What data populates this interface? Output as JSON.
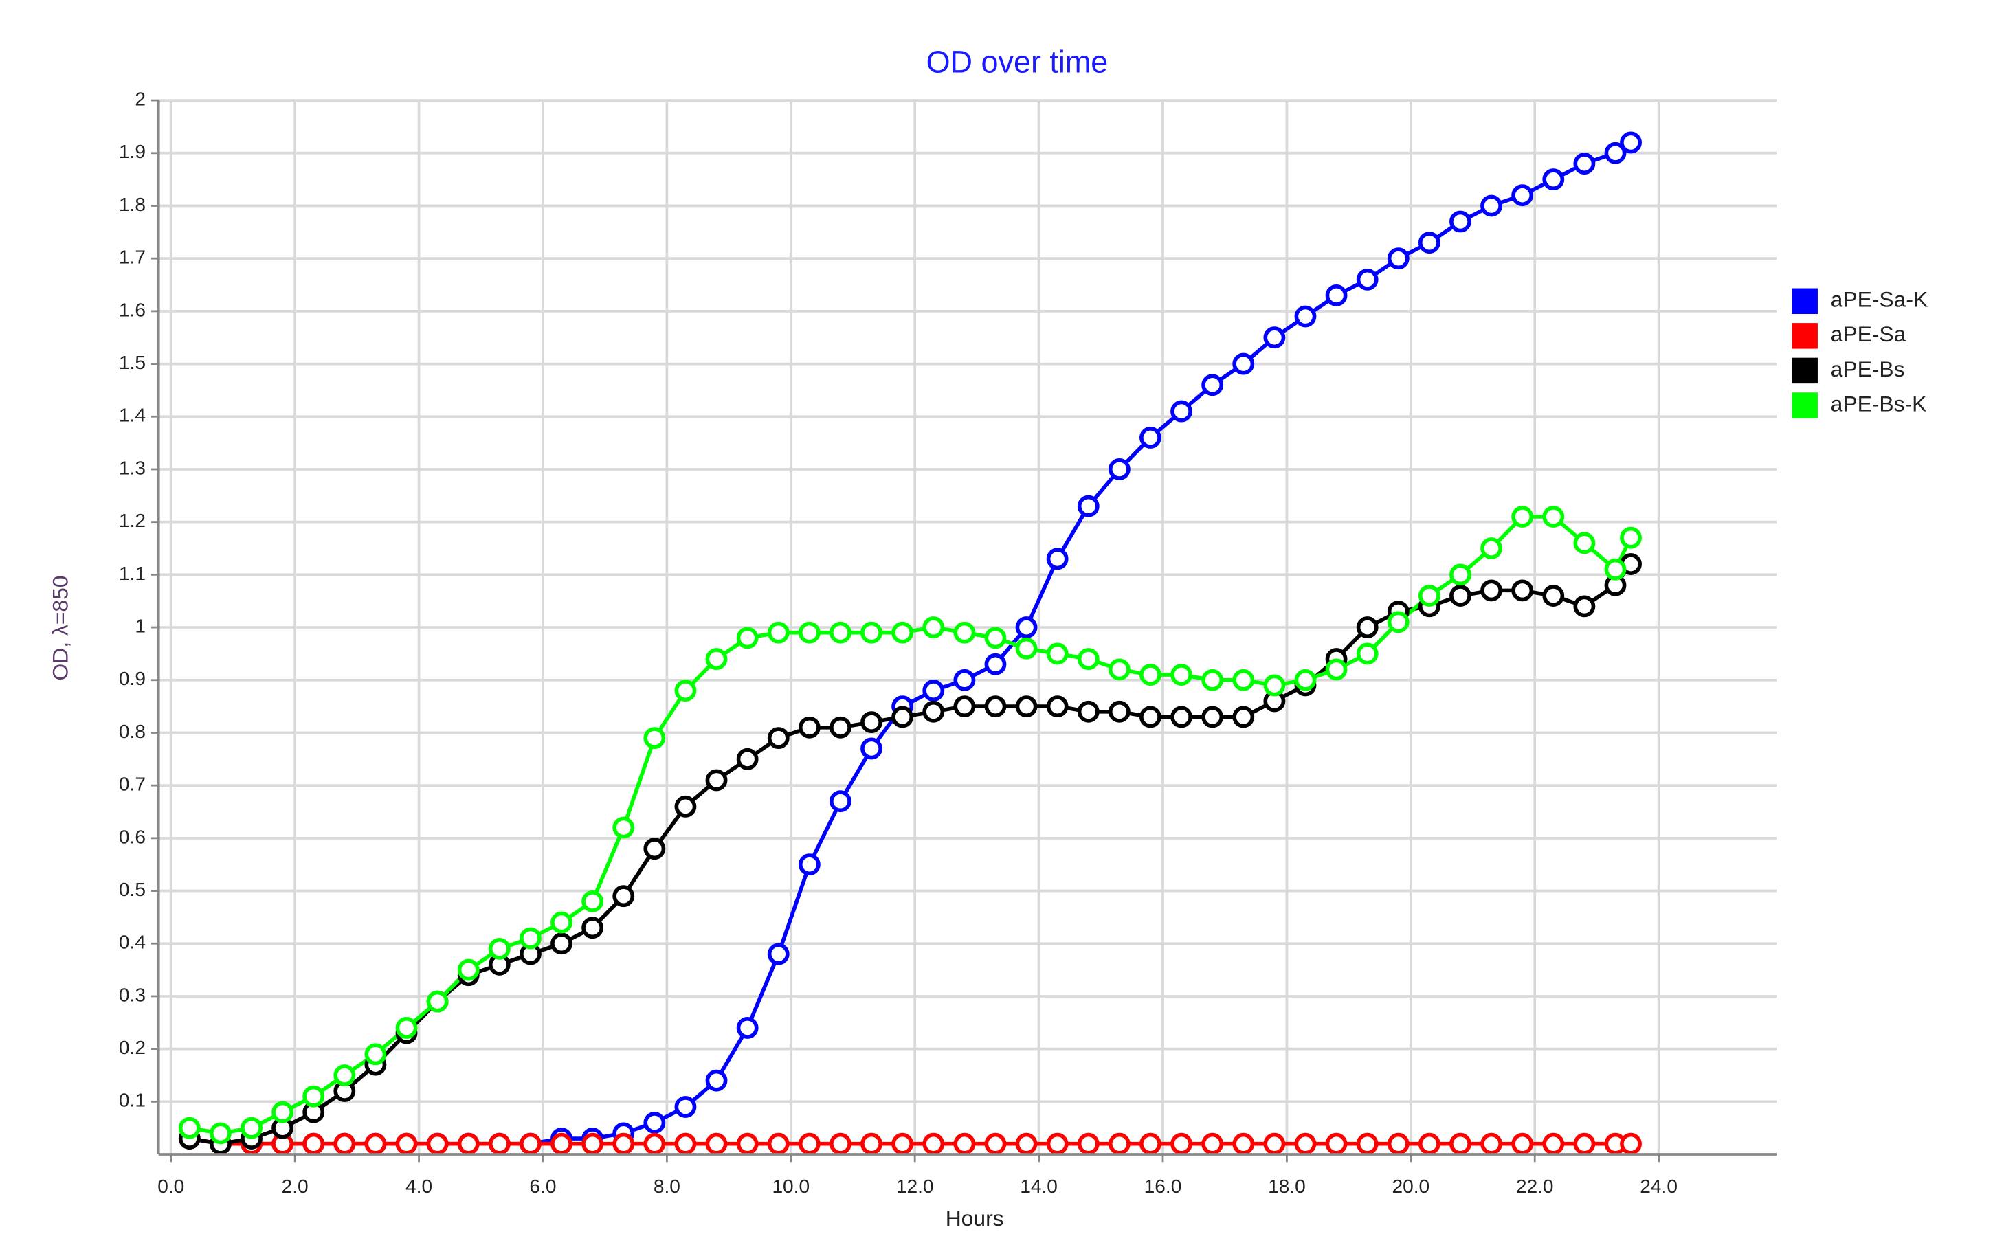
{
  "chart_data": {
    "type": "scatter",
    "title": "OD over time",
    "x_label": "Hours",
    "y_label": "OD, λ=850",
    "x": [
      0.3,
      0.8,
      1.3,
      1.8,
      2.3,
      2.8,
      3.3,
      3.8,
      4.3,
      4.8,
      5.3,
      5.8,
      6.3,
      6.8,
      7.3,
      7.8,
      8.3,
      8.8,
      9.3,
      9.8,
      10.3,
      10.8,
      11.3,
      11.8,
      12.3,
      12.8,
      13.3,
      13.8,
      14.3,
      14.8,
      15.3,
      15.8,
      16.3,
      16.8,
      17.3,
      17.8,
      18.3,
      18.8,
      19.3,
      19.8,
      20.3,
      20.8,
      21.3,
      21.8,
      22.3,
      22.8,
      23.3,
      23.55
    ],
    "series": [
      {
        "name": "aPE-Sa-K",
        "color": "#0000ff",
        "values": [
          0.03,
          0.02,
          0.02,
          0.02,
          0.02,
          0.02,
          0.02,
          0.02,
          0.02,
          0.02,
          0.02,
          0.02,
          0.03,
          0.03,
          0.04,
          0.06,
          0.09,
          0.14,
          0.24,
          0.38,
          0.55,
          0.67,
          0.77,
          0.85,
          0.88,
          0.9,
          0.93,
          1.0,
          1.13,
          1.23,
          1.3,
          1.36,
          1.41,
          1.46,
          1.5,
          1.55,
          1.59,
          1.63,
          1.66,
          1.7,
          1.73,
          1.77,
          1.8,
          1.82,
          1.85,
          1.88,
          1.9,
          1.92
        ]
      },
      {
        "name": "aPE-Sa",
        "color": "#ff0000",
        "values": [
          0.03,
          0.02,
          0.02,
          0.02,
          0.02,
          0.02,
          0.02,
          0.02,
          0.02,
          0.02,
          0.02,
          0.02,
          0.02,
          0.02,
          0.02,
          0.02,
          0.02,
          0.02,
          0.02,
          0.02,
          0.02,
          0.02,
          0.02,
          0.02,
          0.02,
          0.02,
          0.02,
          0.02,
          0.02,
          0.02,
          0.02,
          0.02,
          0.02,
          0.02,
          0.02,
          0.02,
          0.02,
          0.02,
          0.02,
          0.02,
          0.02,
          0.02,
          0.02,
          0.02,
          0.02,
          0.02,
          0.02,
          0.02
        ]
      },
      {
        "name": "aPE-Bs",
        "color": "#000000",
        "values": [
          0.03,
          0.02,
          0.03,
          0.05,
          0.08,
          0.12,
          0.17,
          0.23,
          0.29,
          0.34,
          0.36,
          0.38,
          0.4,
          0.43,
          0.49,
          0.58,
          0.66,
          0.71,
          0.75,
          0.79,
          0.81,
          0.81,
          0.82,
          0.83,
          0.84,
          0.85,
          0.85,
          0.85,
          0.85,
          0.84,
          0.84,
          0.83,
          0.83,
          0.83,
          0.83,
          0.86,
          0.89,
          0.94,
          1.0,
          1.03,
          1.04,
          1.06,
          1.07,
          1.07,
          1.06,
          1.04,
          1.08,
          1.12
        ]
      },
      {
        "name": "aPE-Bs-K",
        "color": "#00ff00",
        "values": [
          0.05,
          0.04,
          0.05,
          0.08,
          0.11,
          0.15,
          0.19,
          0.24,
          0.29,
          0.35,
          0.39,
          0.41,
          0.44,
          0.48,
          0.62,
          0.79,
          0.88,
          0.94,
          0.98,
          0.99,
          0.99,
          0.99,
          0.99,
          0.99,
          1.0,
          0.99,
          0.98,
          0.96,
          0.95,
          0.94,
          0.92,
          0.91,
          0.91,
          0.9,
          0.9,
          0.89,
          0.9,
          0.92,
          0.95,
          1.01,
          1.06,
          1.1,
          1.15,
          1.21,
          1.21,
          1.16,
          1.11,
          1.17
        ]
      }
    ],
    "xlim": [
      -0.2,
      25.9
    ],
    "ylim": [
      0,
      2
    ],
    "xticks": [
      {
        "value": 0,
        "label": "0.0"
      },
      {
        "value": 2,
        "label": "2.0"
      },
      {
        "value": 4,
        "label": "4.0"
      },
      {
        "value": 6,
        "label": "6.0"
      },
      {
        "value": 8,
        "label": "8.0"
      },
      {
        "value": 10,
        "label": "10.0"
      },
      {
        "value": 12,
        "label": "12.0"
      },
      {
        "value": 14,
        "label": "14.0"
      },
      {
        "value": 16,
        "label": "16.0"
      },
      {
        "value": 18,
        "label": "18.0"
      },
      {
        "value": 20,
        "label": "20.0"
      },
      {
        "value": 22,
        "label": "22.0"
      },
      {
        "value": 24,
        "label": "24.0"
      }
    ],
    "yticks": [
      0.1,
      0.2,
      0.3,
      0.4,
      0.5,
      0.6,
      0.7,
      0.8,
      0.9,
      1,
      1.1,
      1.2,
      1.3,
      1.4,
      1.5,
      1.6,
      1.7,
      1.8,
      1.9,
      2
    ],
    "grid": true,
    "legend": "right"
  }
}
